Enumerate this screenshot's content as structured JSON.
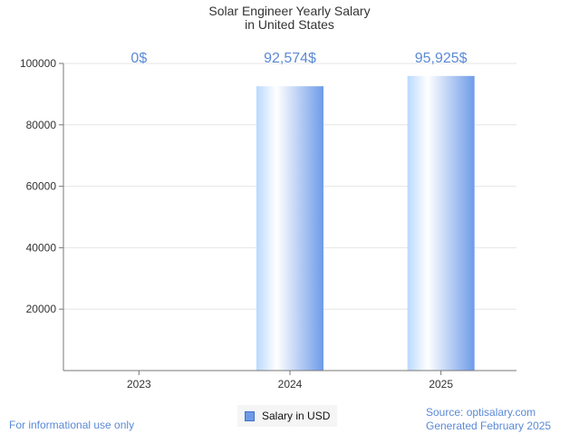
{
  "header": {
    "title_line1": "Solar Engineer Yearly Salary",
    "title_line2": "in United States"
  },
  "legend": {
    "label": "Salary in USD"
  },
  "footer": {
    "left": "For informational use only",
    "source": "Source: optisalary.com",
    "generated": "Generated February 2025"
  },
  "colors": {
    "bar_light": "#d9ecff",
    "bar_dark": "#6e9be8",
    "label": "#5b8ad6",
    "grid": "#e6e6e6",
    "axis": "#777777"
  },
  "chart_data": {
    "type": "bar",
    "title": "Solar Engineer Yearly Salary in United States",
    "categories": [
      "2023",
      "2024",
      "2025"
    ],
    "series": [
      {
        "name": "Salary in USD",
        "values": [
          0,
          92574,
          95925
        ]
      }
    ],
    "data_labels": [
      "0$",
      "92,574$",
      "95,925$"
    ],
    "y_ticks": [
      20000,
      40000,
      60000,
      80000,
      100000
    ],
    "ylim": [
      0,
      100000
    ],
    "grid": true,
    "legend_position": "bottom"
  }
}
